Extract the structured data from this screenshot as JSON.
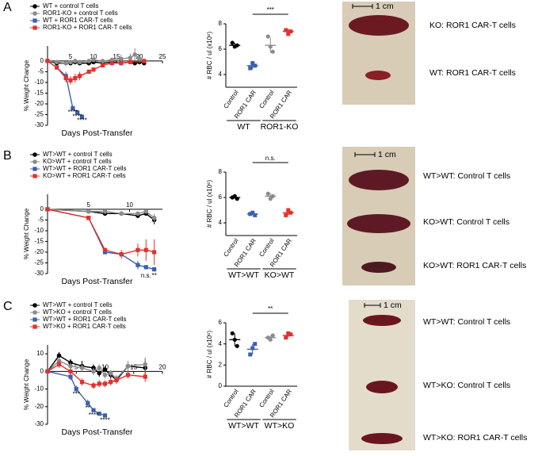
{
  "panel_labels": [
    "A",
    "B",
    "C"
  ],
  "chart_data": [
    {
      "type": "line",
      "xlabel": "Days Post-Transfer",
      "ylabel": "% Weight Change",
      "xlim": [
        0,
        25
      ],
      "xticks": [
        5,
        10,
        15,
        20,
        25
      ],
      "ylim": [
        -30,
        7
      ],
      "yticks": [
        -30,
        -25,
        -20,
        -15,
        -10,
        -5,
        0
      ],
      "series": [
        {
          "name": "WT + control T cells",
          "color": "#000000",
          "marker": "circle",
          "x": [
            0,
            2,
            4,
            5,
            6,
            7,
            9,
            10,
            12,
            14,
            16,
            18,
            19,
            20,
            21
          ],
          "values": [
            0,
            -1,
            -1,
            -1,
            -0.5,
            -1,
            -1,
            -0.5,
            -1,
            -0.5,
            -1,
            -0.5,
            -1,
            -0.5,
            -1
          ],
          "errors": [
            0,
            1,
            1,
            1,
            1,
            1,
            1,
            1,
            1,
            1,
            1,
            1,
            1,
            1,
            1
          ]
        },
        {
          "name": "ROR1-KO + control T cells",
          "color": "#8c8c8c",
          "marker": "circle",
          "x": [
            0,
            2,
            4,
            5,
            6,
            7,
            9,
            10,
            12,
            14,
            16,
            18,
            19,
            20,
            21
          ],
          "values": [
            0,
            -0.5,
            -1,
            -0.5,
            0,
            -0.5,
            0,
            0.5,
            0,
            0.5,
            1,
            1.5,
            3,
            1,
            0
          ],
          "errors": [
            0,
            1,
            1,
            1,
            1,
            1,
            1,
            1,
            1,
            1,
            2,
            2,
            3,
            2,
            1
          ]
        },
        {
          "name": "WT + ROR1 CAR-T cells",
          "color": "#3a5fb0",
          "marker": "square",
          "x": [
            0,
            2,
            4,
            5.5,
            6.5,
            7.5
          ],
          "values": [
            0,
            -3,
            -7,
            -22,
            -24,
            -26
          ],
          "errors": [
            0,
            1,
            2,
            1,
            1,
            1
          ]
        },
        {
          "name": "ROR1-KO + ROR1 CAR-T cells",
          "color": "#e2312b",
          "marker": "square",
          "x": [
            0,
            2,
            4,
            5,
            6,
            7,
            9,
            10,
            12,
            14,
            16,
            18,
            21
          ],
          "values": [
            0,
            -3,
            -8,
            -9,
            -8,
            -7,
            -5,
            -4,
            -2,
            -1,
            -1,
            -0.5,
            0
          ],
          "errors": [
            0,
            1,
            2,
            2,
            2,
            2,
            1,
            1,
            1,
            1,
            1,
            1,
            1
          ]
        }
      ],
      "annotations": [
        {
          "text": "****",
          "x": 5.5,
          "y": -24
        },
        {
          "text": "****",
          "x": 6.5,
          "y": -26
        },
        {
          "text": "****",
          "x": 7.5,
          "y": -28
        }
      ]
    },
    {
      "type": "dot",
      "ylabel": "# RBC / ul (x10⁶)",
      "ylim": [
        3,
        8
      ],
      "yticks": [
        4,
        6,
        8
      ],
      "categories": [
        "Control",
        "ROR1 CAR",
        "Control",
        "ROR1 CAR"
      ],
      "groups": [
        "WT",
        "ROR1-KO"
      ],
      "colors": [
        "#000000",
        "#3a5fb0",
        "#8c8c8c",
        "#e2312b"
      ],
      "points": [
        [
          6.5,
          6.2,
          6.3
        ],
        [
          4.5,
          4.9,
          4.7
        ],
        [
          7.0,
          6.2,
          5.8
        ],
        [
          7.5,
          7.2,
          7.4
        ]
      ],
      "mean": [
        6.3,
        4.7,
        6.3,
        7.4
      ],
      "sd": [
        0.2,
        0.3,
        0.6,
        0.2
      ],
      "significance": "***"
    },
    {
      "type": "line",
      "xlabel": "Days Post-Transfer",
      "ylabel": "% Weight Change",
      "xlim": [
        0,
        14
      ],
      "xticks": [
        5,
        10
      ],
      "ylim": [
        -30,
        7
      ],
      "yticks": [
        -30,
        -25,
        -20,
        -15,
        -10,
        -5,
        0
      ],
      "series": [
        {
          "name": "WT>WT + control T cells",
          "color": "#000000",
          "marker": "circle",
          "x": [
            0,
            5,
            7,
            9,
            11,
            12,
            13
          ],
          "values": [
            0,
            -1,
            -2,
            -2,
            -3,
            -2,
            -5
          ],
          "errors": [
            0,
            1,
            1,
            1,
            1,
            1,
            2
          ]
        },
        {
          "name": "KO>WT + control T cells",
          "color": "#8c8c8c",
          "marker": "circle",
          "x": [
            0,
            5,
            7,
            9,
            11,
            12,
            13
          ],
          "values": [
            0,
            -1,
            -1,
            -2,
            -2,
            -1,
            -4
          ],
          "errors": [
            0,
            1,
            1,
            1,
            1,
            1,
            2
          ]
        },
        {
          "name": "WT>WT + ROR1 CAR-T cells",
          "color": "#3a5fb0",
          "marker": "square",
          "x": [
            0,
            5,
            7,
            9,
            11,
            12,
            13
          ],
          "values": [
            0,
            -4,
            -20,
            -21,
            -26,
            -27,
            -28
          ],
          "errors": [
            0,
            1,
            1,
            1,
            2,
            1,
            1
          ]
        },
        {
          "name": "KO>WT + ROR1 CAR-T cells",
          "color": "#e2312b",
          "marker": "square",
          "x": [
            0,
            5,
            7,
            9,
            11,
            12,
            13
          ],
          "values": [
            0,
            -4,
            -19,
            -21,
            -19,
            -19,
            -20
          ],
          "errors": [
            0,
            1,
            1,
            2,
            3,
            5,
            6
          ]
        }
      ],
      "annotations": [
        {
          "text": "n.s.",
          "x": 12,
          "y": -31
        },
        {
          "text": "**",
          "x": 13,
          "y": -31
        }
      ]
    },
    {
      "type": "dot",
      "ylabel": "# RBC / ul (x10⁶)",
      "ylim": [
        3,
        8
      ],
      "yticks": [
        4,
        6,
        8
      ],
      "categories": [
        "Control",
        "ROR1 CAR",
        "Control",
        "ROR1 CAR"
      ],
      "groups": [
        "WT>WT",
        "KO>WT"
      ],
      "colors": [
        "#000000",
        "#3a5fb0",
        "#8c8c8c",
        "#e2312b"
      ],
      "points": [
        [
          6.0,
          6.1,
          5.9
        ],
        [
          4.7,
          4.8,
          4.6
        ],
        [
          6.3,
          5.9,
          6.1
        ],
        [
          4.6,
          5.0,
          4.8
        ]
      ],
      "mean": [
        6.0,
        4.7,
        6.1,
        4.8
      ],
      "sd": [
        0.1,
        0.1,
        0.2,
        0.2
      ],
      "significance": "n.s."
    },
    {
      "type": "line",
      "xlabel": "Days Post-Transfer",
      "ylabel": "% Weight Change",
      "xlim": [
        0,
        20
      ],
      "xticks": [
        5,
        10,
        15,
        20
      ],
      "ylim": [
        -30,
        15
      ],
      "yticks": [
        -30,
        -20,
        -10,
        0,
        10
      ],
      "series": [
        {
          "name": "WT>WT + control T cells",
          "color": "#000000",
          "marker": "circle",
          "x": [
            0,
            2,
            4,
            6,
            8,
            9,
            10,
            11,
            12,
            14,
            17
          ],
          "values": [
            0,
            9,
            5,
            3,
            2,
            -1,
            1,
            -2,
            -5,
            3,
            2
          ],
          "errors": [
            0,
            2,
            2,
            3,
            2,
            2,
            2,
            2,
            2,
            3,
            5
          ]
        },
        {
          "name": "WT>KO + control T cells",
          "color": "#8c8c8c",
          "marker": "circle",
          "x": [
            0,
            2,
            4,
            6,
            8,
            9,
            10,
            11,
            12,
            14,
            17
          ],
          "values": [
            0,
            6,
            3,
            2,
            0,
            2,
            -2,
            -1,
            -4,
            3,
            4
          ],
          "errors": [
            0,
            2,
            2,
            2,
            2,
            2,
            2,
            2,
            2,
            3,
            4
          ]
        },
        {
          "name": "WT>WT + ROR1 CAR-T cells",
          "color": "#3a5fb0",
          "marker": "square",
          "x": [
            0,
            4,
            5,
            7,
            8,
            9,
            10
          ],
          "values": [
            0,
            -3,
            -10,
            -18,
            -22,
            -24,
            -25
          ],
          "errors": [
            0,
            2,
            2,
            2,
            1,
            1,
            1
          ]
        },
        {
          "name": "WT>KO + ROR1 CAR-T cells",
          "color": "#e2312b",
          "marker": "square",
          "x": [
            0,
            2,
            4,
            6,
            8,
            9,
            10,
            11,
            12,
            14,
            17
          ],
          "values": [
            0,
            4,
            0,
            -6,
            -8,
            -7,
            -7,
            -6,
            -5,
            -2,
            -3
          ],
          "errors": [
            0,
            2,
            2,
            2,
            2,
            2,
            2,
            2,
            2,
            2,
            3
          ]
        }
      ],
      "annotations": [
        {
          "text": "***",
          "x": 5,
          "y": -13
        },
        {
          "text": "**",
          "x": 7,
          "y": -21
        },
        {
          "text": "****",
          "x": 8,
          "y": -25
        },
        {
          "text": "****",
          "x": 10,
          "y": -28
        }
      ]
    },
    {
      "type": "dot",
      "ylabel": "# RBC / ul (x10⁶)",
      "ylim": [
        0,
        6
      ],
      "yticks": [
        0,
        2,
        4,
        6
      ],
      "categories": [
        "Control",
        "ROR1 CAR",
        "Control",
        "ROR1 CAR"
      ],
      "groups": [
        "WT>WT",
        "WT>KO"
      ],
      "colors": [
        "#000000",
        "#3a5fb0",
        "#8c8c8c",
        "#e2312b"
      ],
      "points": [
        [
          5.0,
          4.4,
          3.8
        ],
        [
          3.0,
          3.6,
          4.0
        ],
        [
          4.6,
          4.4,
          4.8
        ],
        [
          4.6,
          5.0,
          4.9
        ]
      ],
      "mean": [
        4.4,
        3.5,
        4.6,
        4.8
      ],
      "sd": [
        0.6,
        0.5,
        0.2,
        0.2
      ],
      "significance": "**"
    }
  ],
  "photos": [
    {
      "scale": "1 cm",
      "labels": [
        "KO: ROR1 CAR-T cells",
        "WT: ROR1 CAR-T cells"
      ]
    },
    {
      "scale": "1 cm",
      "labels": [
        "WT>WT: Control T cells",
        "KO>WT: Control T cells",
        "KO>WT: ROR1 CAR-T cells"
      ]
    },
    {
      "scale": "1 cm",
      "labels": [
        "WT>WT: Control T cells",
        "WT>KO: Control T cells",
        "WT>KO: ROR1 CAR-T cells"
      ]
    }
  ]
}
